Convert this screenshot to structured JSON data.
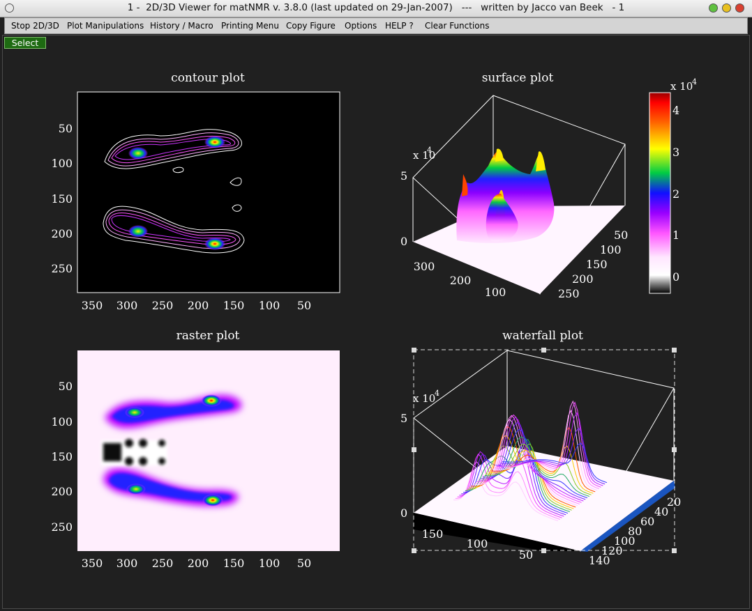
{
  "window": {
    "title": "1 -  2D/3D Viewer for matNMR v. 3.8.0 (last updated on 29-Jan-2007)   ---   written by Jacco van Beek   - 1",
    "button_colors": {
      "minimize": "#5fc140",
      "maximize": "#e8c020",
      "close": "#d94030"
    }
  },
  "menu": {
    "items": [
      "Stop 2D/3D",
      "Plot Manipulations",
      "History / Macro",
      "Printing Menu",
      "Copy Figure",
      "Options",
      "HELP ?",
      "Clear Functions"
    ]
  },
  "select_button": {
    "label": "Select"
  },
  "chart_data": [
    {
      "type": "contour",
      "title": "contour plot",
      "x_ticks": [
        "350",
        "300",
        "250",
        "200",
        "150",
        "100",
        "50"
      ],
      "y_ticks": [
        "50",
        "100",
        "150",
        "200",
        "250"
      ],
      "peaks": [
        {
          "x": 283,
          "y": 88,
          "level": 3
        },
        {
          "x": 170,
          "y": 70,
          "level": 4
        },
        {
          "x": 283,
          "y": 198,
          "level": 3
        },
        {
          "x": 180,
          "y": 217,
          "level": 4
        }
      ]
    },
    {
      "type": "surface",
      "title": "surface plot",
      "z_ticks": [
        "0",
        "5"
      ],
      "z_multiplier": "x 10",
      "z_exponent": "4",
      "x_ticks": [
        "300",
        "200",
        "100"
      ],
      "y_ticks": [
        "50",
        "100",
        "150",
        "200",
        "250"
      ]
    },
    {
      "type": "raster",
      "title": "raster plot",
      "x_ticks": [
        "350",
        "300",
        "250",
        "200",
        "150",
        "100",
        "50"
      ],
      "y_ticks": [
        "50",
        "100",
        "150",
        "200",
        "250"
      ]
    },
    {
      "type": "waterfall",
      "title": "waterfall plot",
      "z_ticks": [
        "0",
        "5"
      ],
      "z_multiplier": "x 10",
      "z_exponent": "4",
      "x_ticks": [
        "150",
        "100",
        "50"
      ],
      "y_ticks": [
        "20",
        "40",
        "60",
        "80",
        "100",
        "120",
        "140"
      ]
    }
  ],
  "colorbar": {
    "multiplier": "x 10",
    "exponent": "4",
    "ticks": [
      "0",
      "1",
      "2",
      "3",
      "4"
    ],
    "colormap": "white-magenta-blue-green-yellow-red"
  }
}
